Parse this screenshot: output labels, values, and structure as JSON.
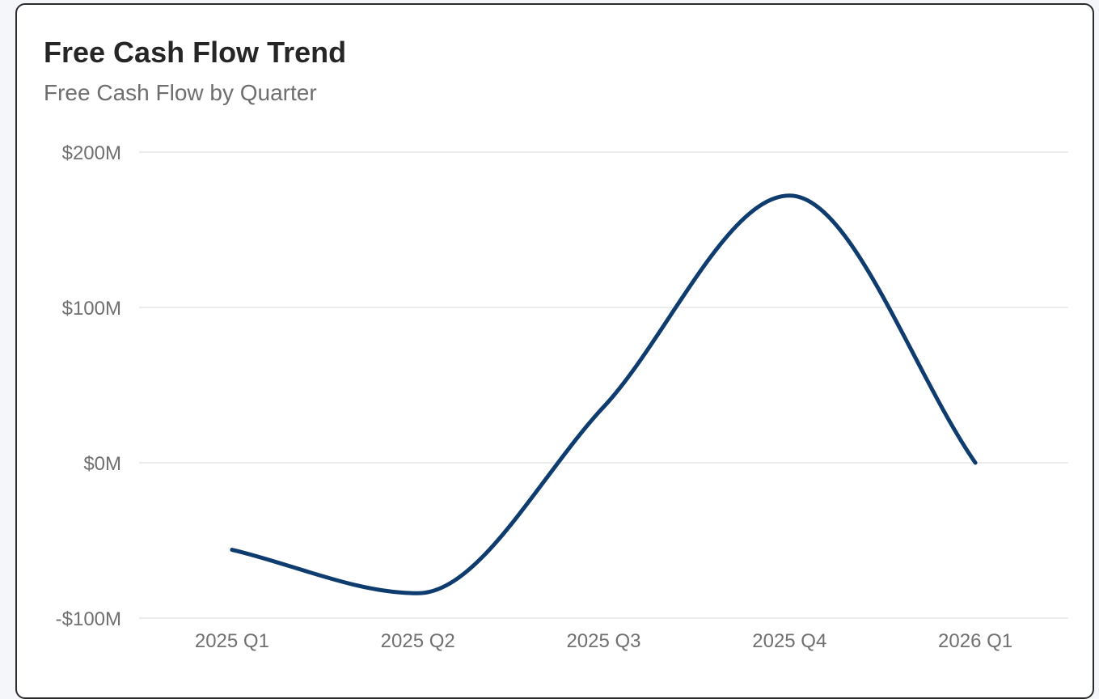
{
  "card": {
    "title": "Free Cash Flow Trend",
    "subtitle": "Free Cash Flow by Quarter"
  },
  "colors": {
    "line": "#0f3c6e",
    "grid": "#e6e6e6",
    "tick_text": "#707070"
  },
  "chart_data": {
    "type": "line",
    "title": "Free Cash Flow Trend",
    "subtitle": "Free Cash Flow by Quarter",
    "xlabel": "",
    "ylabel": "",
    "categories": [
      "2025 Q1",
      "2025 Q2",
      "2025 Q3",
      "2025 Q4",
      "2026 Q1"
    ],
    "series": [
      {
        "values": [
          -56,
          -84,
          36,
          172,
          0
        ]
      }
    ],
    "ylim": [
      -100,
      200
    ],
    "yticks": [
      -100,
      0,
      100,
      200
    ],
    "ytick_labels": [
      "-$100M",
      "$0M",
      "$100M",
      "$200M"
    ],
    "grid": true,
    "legend": "none",
    "smooth": true
  }
}
